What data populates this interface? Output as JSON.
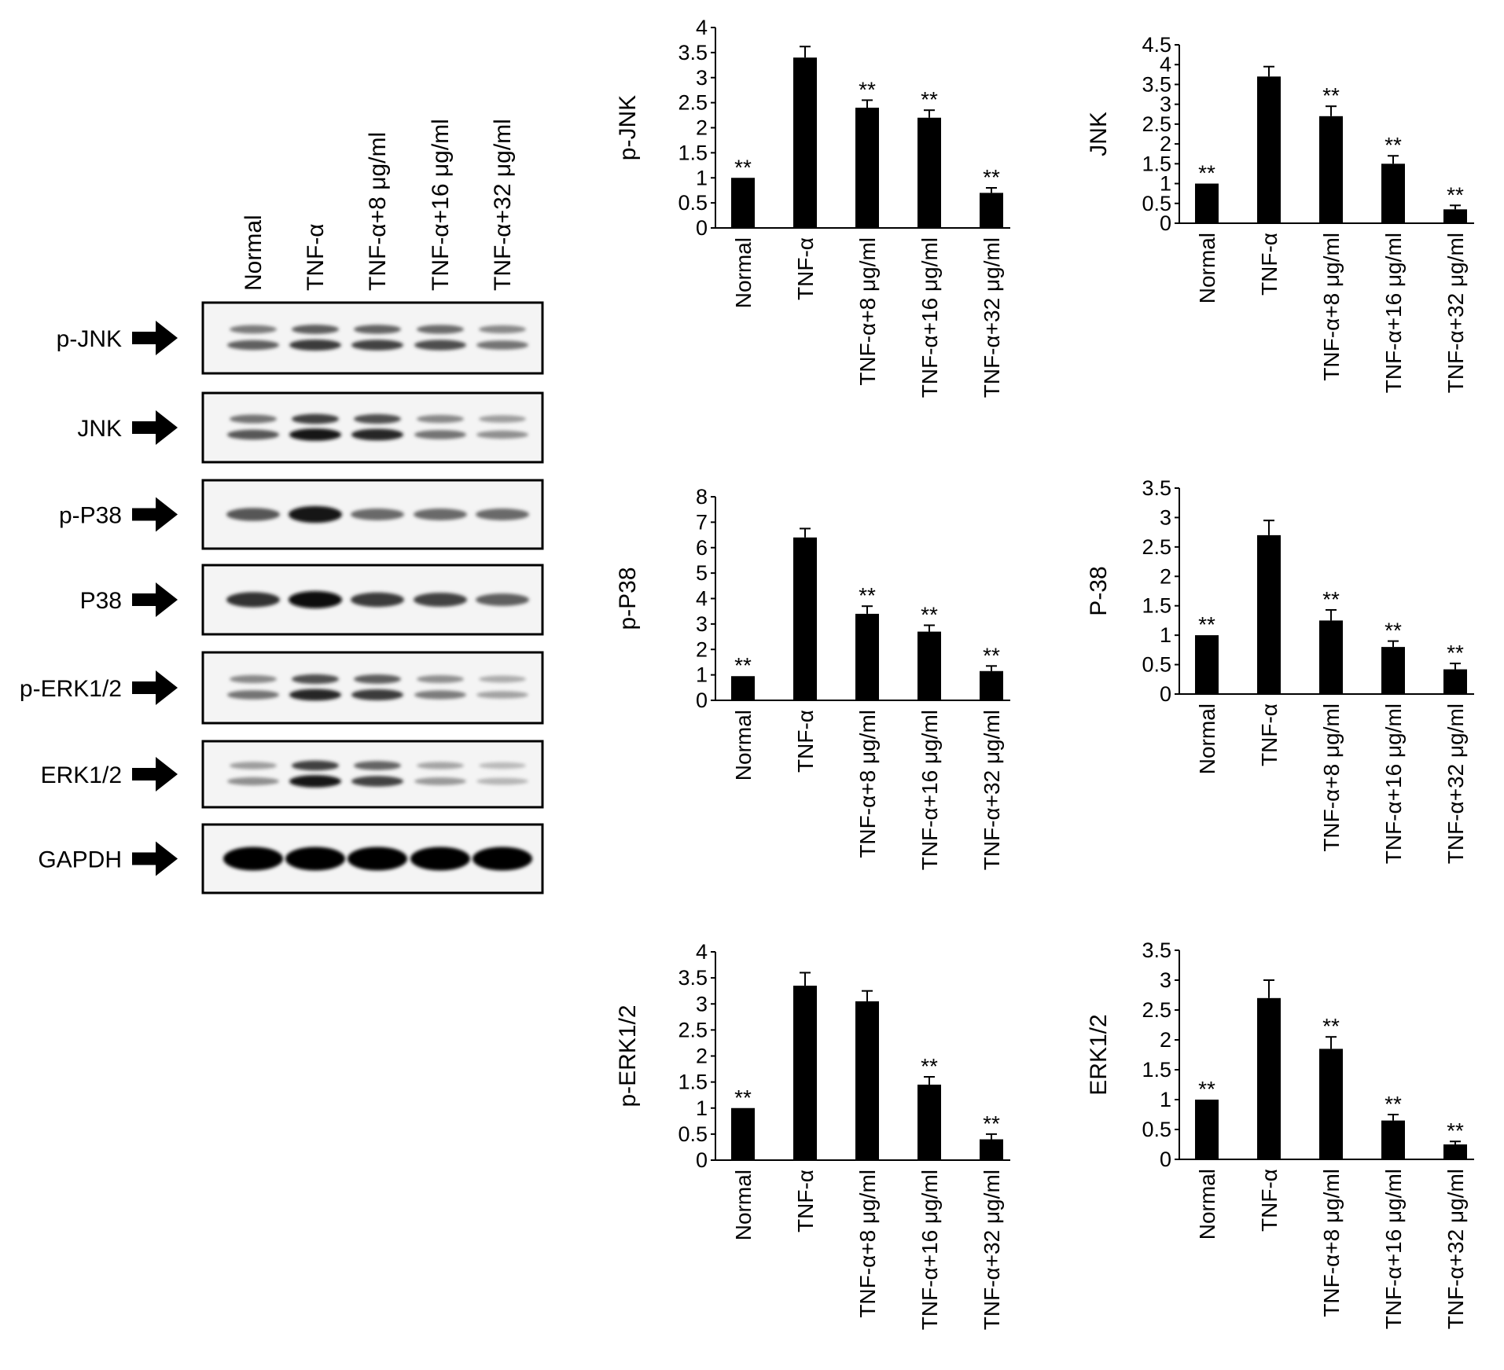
{
  "figure": {
    "lanes": [
      "Normal",
      "TNF-α",
      "TNF-α+8 μg/ml",
      "TNF-α+16 μg/ml",
      "TNF-α+32 μg/ml"
    ],
    "blot_rows": [
      {
        "label": "p-JNK",
        "band_style": "double",
        "intensity": [
          0.55,
          0.75,
          0.7,
          0.65,
          0.45
        ]
      },
      {
        "label": "JNK",
        "band_style": "double",
        "intensity": [
          0.6,
          0.95,
          0.85,
          0.45,
          0.3
        ]
      },
      {
        "label": "p-P38",
        "band_style": "single",
        "intensity": [
          0.6,
          0.95,
          0.5,
          0.5,
          0.5
        ]
      },
      {
        "label": "P38",
        "band_style": "single",
        "intensity": [
          0.8,
          1.0,
          0.75,
          0.7,
          0.55
        ]
      },
      {
        "label": "p-ERK1/2",
        "band_style": "double",
        "intensity": [
          0.45,
          0.85,
          0.75,
          0.4,
          0.2
        ]
      },
      {
        "label": "ERK1/2",
        "band_style": "double",
        "intensity": [
          0.3,
          0.95,
          0.7,
          0.25,
          0.1
        ]
      },
      {
        "label": "GAPDH",
        "band_style": "thick",
        "intensity": [
          1.0,
          1.0,
          1.0,
          1.0,
          1.0
        ]
      }
    ],
    "significance_marker": "**"
  },
  "chart_data": [
    {
      "type": "bar",
      "ylabel": "p-JNK",
      "categories": [
        "Normal",
        "TNF-α",
        "TNF-α+8 μg/ml",
        "TNF-α+16 μg/ml",
        "TNF-α+32 μg/ml"
      ],
      "values": [
        1.0,
        3.4,
        2.4,
        2.2,
        0.7
      ],
      "errors": [
        0,
        0.22,
        0.15,
        0.15,
        0.1
      ],
      "significant": [
        true,
        false,
        true,
        true,
        true
      ],
      "ylim": [
        0,
        4
      ],
      "yticks": [
        "0",
        "0.5",
        "1",
        "1.5",
        "2",
        "2.5",
        "3",
        "3.5",
        "4"
      ]
    },
    {
      "type": "bar",
      "ylabel": "JNK",
      "categories": [
        "Normal",
        "TNF-α",
        "TNF-α+8 μg/ml",
        "TNF-α+16 μg/ml",
        "TNF-α+32 μg/ml"
      ],
      "values": [
        1.0,
        3.7,
        2.7,
        1.5,
        0.35
      ],
      "errors": [
        0,
        0.25,
        0.25,
        0.2,
        0.1
      ],
      "significant": [
        true,
        false,
        true,
        true,
        true
      ],
      "ylim": [
        0,
        4.5
      ],
      "yticks": [
        "0",
        "0.5",
        "1",
        "1.5",
        "2",
        "2.5",
        "3",
        "3.5",
        "4",
        "4.5"
      ]
    },
    {
      "type": "bar",
      "ylabel": "p-P38",
      "categories": [
        "Normal",
        "TNF-α",
        "TNF-α+8 μg/ml",
        "TNF-α+16 μg/ml",
        "TNF-α+32 μg/ml"
      ],
      "values": [
        0.95,
        6.4,
        3.4,
        2.7,
        1.15
      ],
      "errors": [
        0,
        0.35,
        0.3,
        0.25,
        0.2
      ],
      "significant": [
        true,
        false,
        true,
        true,
        true
      ],
      "ylim": [
        0,
        8
      ],
      "yticks": [
        "0",
        "1",
        "2",
        "3",
        "4",
        "5",
        "6",
        "7",
        "8"
      ]
    },
    {
      "type": "bar",
      "ylabel": "P-38",
      "categories": [
        "Normal",
        "TNF-α",
        "TNF-α+8 μg/ml",
        "TNF-α+16 μg/ml",
        "TNF-α+32 μg/ml"
      ],
      "values": [
        1.0,
        2.7,
        1.25,
        0.8,
        0.42
      ],
      "errors": [
        0,
        0.25,
        0.18,
        0.1,
        0.1
      ],
      "significant": [
        true,
        false,
        true,
        true,
        true
      ],
      "ylim": [
        0,
        3.5
      ],
      "yticks": [
        "0",
        "0.5",
        "1",
        "1.5",
        "2",
        "2.5",
        "3",
        "3.5"
      ]
    },
    {
      "type": "bar",
      "ylabel": "p-ERK1/2",
      "categories": [
        "Normal",
        "TNF-α",
        "TNF-α+8 μg/ml",
        "TNF-α+16 μg/ml",
        "TNF-α+32 μg/ml"
      ],
      "values": [
        1.0,
        3.35,
        3.05,
        1.45,
        0.4
      ],
      "errors": [
        0,
        0.25,
        0.2,
        0.15,
        0.1
      ],
      "significant": [
        true,
        false,
        false,
        true,
        true
      ],
      "ylim": [
        0,
        4
      ],
      "yticks": [
        "0",
        "0.5",
        "1",
        "1.5",
        "2",
        "2.5",
        "3",
        "3.5",
        "4"
      ]
    },
    {
      "type": "bar",
      "ylabel": "ERK1/2",
      "categories": [
        "Normal",
        "TNF-α",
        "TNF-α+8 μg/ml",
        "TNF-α+16 μg/ml",
        "TNF-α+32 μg/ml"
      ],
      "values": [
        1.0,
        2.7,
        1.85,
        0.65,
        0.25
      ],
      "errors": [
        0,
        0.3,
        0.2,
        0.1,
        0.05
      ],
      "significant": [
        true,
        false,
        true,
        true,
        true
      ],
      "ylim": [
        0,
        3.5
      ],
      "yticks": [
        "0",
        "0.5",
        "1",
        "1.5",
        "2",
        "2.5",
        "3",
        "3.5"
      ]
    }
  ]
}
